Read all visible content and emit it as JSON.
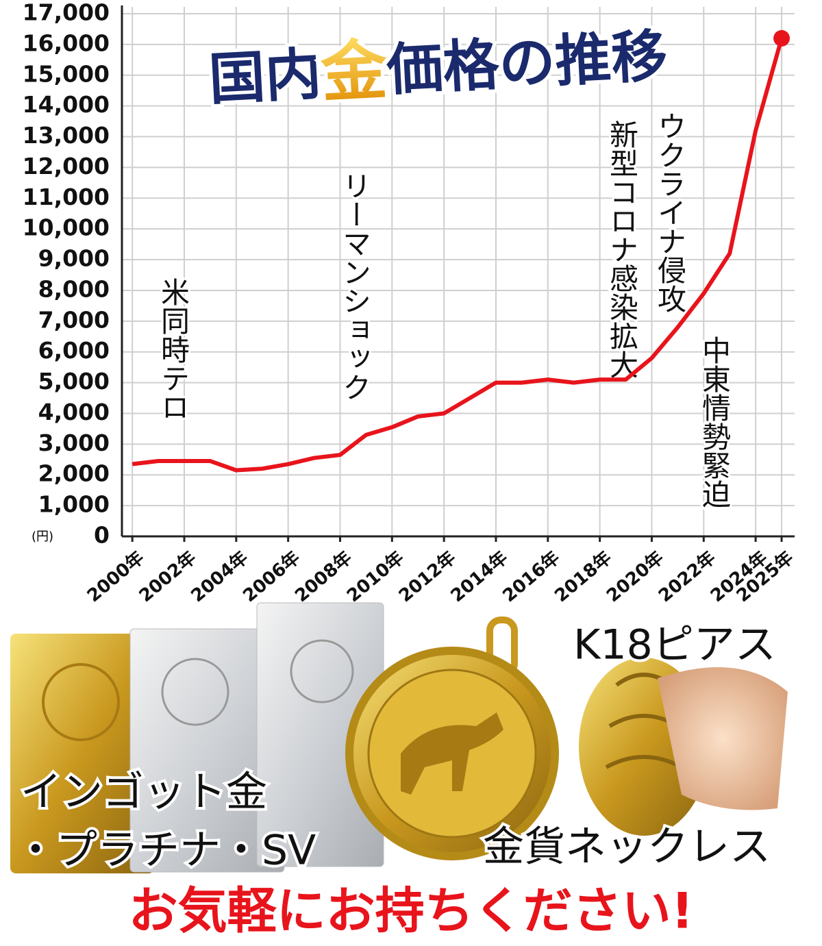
{
  "chart_data": {
    "type": "line",
    "title_parts": [
      "国内",
      "金",
      "価格の推移"
    ],
    "unit": "(円)",
    "x": [
      2000,
      2001,
      2002,
      2003,
      2004,
      2005,
      2006,
      2007,
      2008,
      2009,
      2010,
      2011,
      2012,
      2013,
      2014,
      2015,
      2016,
      2017,
      2018,
      2019,
      2020,
      2021,
      2022,
      2023,
      2024,
      2025
    ],
    "series": [
      {
        "color": "#e8141c",
        "values": [
          2350,
          2450,
          2450,
          2450,
          2150,
          2200,
          2350,
          2550,
          2650,
          3300,
          3550,
          3900,
          4000,
          4500,
          5000,
          5000,
          5100,
          5000,
          5100,
          5100,
          5800,
          6800,
          7900,
          9200,
          13200,
          16200
        ]
      }
    ],
    "xlim": [
      1999.6,
      2025.5
    ],
    "ylim": [
      0,
      17000
    ],
    "xticks": [
      {
        "value": 2000,
        "label": "2000年"
      },
      {
        "value": 2002,
        "label": "2002年"
      },
      {
        "value": 2004,
        "label": "2004年"
      },
      {
        "value": 2006,
        "label": "2006年"
      },
      {
        "value": 2008,
        "label": "2008年"
      },
      {
        "value": 2010,
        "label": "2010年"
      },
      {
        "value": 2012,
        "label": "2012年"
      },
      {
        "value": 2014,
        "label": "2014年"
      },
      {
        "value": 2016,
        "label": "2016年"
      },
      {
        "value": 2018,
        "label": "2018年"
      },
      {
        "value": 2020,
        "label": "2020年"
      },
      {
        "value": 2022,
        "label": "2022年"
      },
      {
        "value": 2024,
        "label": "2024年"
      },
      {
        "value": 2025,
        "label": "2025年"
      }
    ],
    "yticks": [
      0,
      {
        "value": 1000,
        "label": "1,000"
      },
      {
        "value": 2000,
        "label": "2,000"
      },
      {
        "value": 3000,
        "label": "3,000"
      },
      {
        "value": 4000,
        "label": "4,000"
      },
      {
        "value": 5000,
        "label": "5,000"
      },
      {
        "value": 6000,
        "label": "6,000"
      },
      {
        "value": 7000,
        "label": "7,000"
      },
      {
        "value": 8000,
        "label": "8,000"
      },
      {
        "value": 9000,
        "label": "9,000"
      },
      {
        "value": 10000,
        "label": "10,000"
      },
      {
        "value": 11000,
        "label": "11,000"
      },
      {
        "value": 12000,
        "label": "12,000"
      },
      {
        "value": 13000,
        "label": "13,000"
      },
      {
        "value": 14000,
        "label": "14,000"
      },
      {
        "value": 15000,
        "label": "15,000"
      },
      {
        "value": 16000,
        "label": "16,000"
      },
      {
        "value": 17000,
        "label": "17,000"
      }
    ],
    "grid": true,
    "annotations": [
      "米同時テロ",
      "リーマンショック",
      "新型コロナ感染拡大",
      "ウクライナ侵攻",
      "中東情勢緊迫"
    ]
  },
  "products": [
    "インゴット金",
    "・プラチナ・SV",
    "K18ピアス",
    "金貨ネックレス"
  ],
  "banner": "お気軽にお持ちください!"
}
